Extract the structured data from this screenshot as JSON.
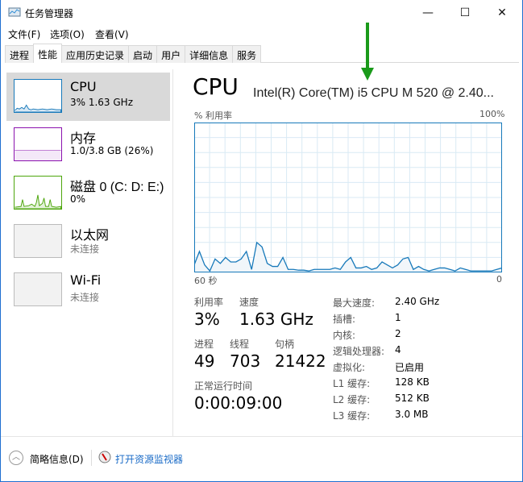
{
  "window": {
    "title": "任务管理器",
    "minimize": "—",
    "maximize": "☐",
    "close": "✕"
  },
  "menu": [
    "文件(F)",
    "选项(O)",
    "查看(V)"
  ],
  "tabs": [
    "进程",
    "性能",
    "应用历史记录",
    "启动",
    "用户",
    "详细信息",
    "服务"
  ],
  "active_tab": 1,
  "sidebar": [
    {
      "name": "CPU",
      "sub": "3% 1.63 GHz",
      "color": "#1779ba"
    },
    {
      "name": "内存",
      "sub": "1.0/3.8 GB (26%)",
      "color": "#8b12ae"
    },
    {
      "name": "磁盘 0 (C: D: E:)",
      "sub": "0%",
      "color": "#4da60c"
    },
    {
      "name": "以太网",
      "sub": "未连接",
      "color": "#bbbbbb"
    },
    {
      "name": "Wi-Fi",
      "sub": "未连接",
      "color": "#bbbbbb"
    }
  ],
  "main": {
    "heading": "CPU",
    "model": "Intel(R) Core(TM) i5 CPU M 520 @ 2.40...",
    "graph_label": "% 利用率",
    "graph_max": "100%",
    "graph_left": "60 秒",
    "graph_right": "0",
    "util_label": "利用率",
    "util": "3%",
    "speed_label": "速度",
    "speed": "1.63 GHz",
    "proc_label": "进程",
    "proc": "49",
    "thread_label": "线程",
    "thread": "703",
    "handle_label": "句柄",
    "handle": "21422",
    "uptime_label": "正常运行时间",
    "uptime": "0:00:09:00",
    "specs": [
      [
        "最大速度:",
        "2.40 GHz"
      ],
      [
        "插槽:",
        "1"
      ],
      [
        "内核:",
        "2"
      ],
      [
        "逻辑处理器:",
        "4"
      ],
      [
        "虚拟化:",
        "已启用"
      ],
      [
        "L1 缓存:",
        "128 KB"
      ],
      [
        "L2 缓存:",
        "512 KB"
      ],
      [
        "L3 缓存:",
        "3.0 MB"
      ]
    ]
  },
  "chart_data": {
    "type": "area",
    "xlabel": "60 秒",
    "ylabel": "% 利用率",
    "ylim": [
      0,
      100
    ],
    "xlim": [
      60,
      0
    ],
    "grid": true,
    "color": "#1779ba",
    "values": [
      5,
      14,
      5,
      1,
      9,
      6,
      10,
      7,
      7,
      9,
      14,
      2,
      20,
      17,
      6,
      4,
      4,
      10,
      2,
      2,
      1.5,
      1.5,
      1,
      2,
      2,
      2,
      2,
      3,
      2,
      7,
      10,
      3,
      3,
      4,
      2,
      3,
      7,
      5,
      3,
      5,
      9,
      10,
      2,
      4,
      2,
      1,
      2,
      3,
      3,
      2,
      1,
      3,
      2,
      1,
      1,
      1,
      1,
      1,
      2,
      3
    ]
  },
  "footer": {
    "summary": "简略信息(D)",
    "monitor": "打开资源监视器"
  }
}
